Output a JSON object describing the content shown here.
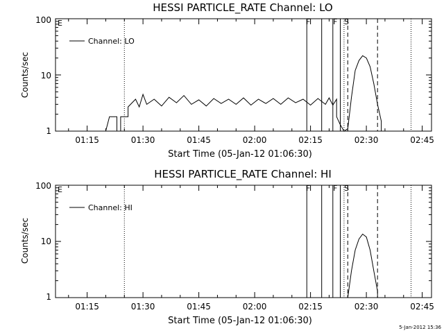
{
  "footer_timestamp": "5-Jan-2012 15:36",
  "chart_data": [
    {
      "type": "line",
      "title": "HESSI PARTICLE_RATE Channel: LO",
      "xlabel": "Start Time (05-Jan-12 01:06:30)",
      "ylabel": "Counts/sec",
      "yscale": "log",
      "ylim": [
        1,
        100
      ],
      "xlim": [
        "01:06:30",
        "02:47:30"
      ],
      "x_tick_labels": [
        "01:15",
        "01:30",
        "01:45",
        "02:00",
        "02:15",
        "02:30",
        "02:45"
      ],
      "y_tick_labels": [
        "1",
        "10",
        "100"
      ],
      "legend": "Channel: LO",
      "legend_position": "top-left",
      "flag_labels": [
        "E",
        "F",
        "F",
        "S"
      ],
      "flag_lines": {
        "solid": [
          "02:14",
          "02:18",
          "02:21",
          "02:23"
        ],
        "dashed": [
          "02:25",
          "02:33"
        ],
        "dotted": [
          "01:25",
          "02:24",
          "02:42"
        ]
      },
      "series": [
        {
          "points": [
            [
              "01:20",
              1.0
            ],
            [
              "01:21",
              1.8
            ],
            [
              "01:23",
              1.8
            ],
            [
              "01:23",
              1.0
            ],
            [
              "01:24",
              1.0
            ],
            [
              "01:24",
              1.8
            ],
            [
              "01:26",
              1.8
            ],
            [
              "01:26",
              2.7
            ],
            [
              "01:28",
              3.7
            ],
            [
              "01:29",
              2.7
            ],
            [
              "01:30",
              4.5
            ],
            [
              "01:31",
              3.0
            ],
            [
              "01:33",
              3.7
            ],
            [
              "01:35",
              2.8
            ],
            [
              "01:37",
              4.0
            ],
            [
              "01:39",
              3.2
            ],
            [
              "01:41",
              4.3
            ],
            [
              "01:43",
              3.0
            ],
            [
              "01:45",
              3.6
            ],
            [
              "01:47",
              2.8
            ],
            [
              "01:49",
              3.8
            ],
            [
              "01:51",
              3.1
            ],
            [
              "01:53",
              3.7
            ],
            [
              "01:55",
              3.0
            ],
            [
              "01:57",
              3.9
            ],
            [
              "01:59",
              2.9
            ],
            [
              "02:01",
              3.7
            ],
            [
              "02:03",
              3.1
            ],
            [
              "02:05",
              3.8
            ],
            [
              "02:07",
              3.0
            ],
            [
              "02:09",
              3.9
            ],
            [
              "02:11",
              3.2
            ],
            [
              "02:13",
              3.7
            ],
            [
              "02:15",
              2.9
            ],
            [
              "02:17",
              3.8
            ],
            [
              "02:19",
              3.0
            ],
            [
              "02:20",
              3.9
            ],
            [
              "02:21",
              2.9
            ],
            [
              "02:22",
              3.7
            ],
            [
              "02:22",
              1.8
            ],
            [
              "02:23",
              1.3
            ],
            [
              "02:24",
              1.0
            ],
            [
              "02:25",
              1.1
            ],
            [
              "02:26",
              4.0
            ],
            [
              "02:27",
              12.0
            ],
            [
              "02:28",
              18.0
            ],
            [
              "02:29",
              22.0
            ],
            [
              "02:30",
              20.0
            ],
            [
              "02:31",
              14.0
            ],
            [
              "02:32",
              7.0
            ],
            [
              "02:33",
              3.0
            ],
            [
              "02:34",
              1.5
            ],
            [
              "02:34",
              1.0
            ]
          ]
        }
      ]
    },
    {
      "type": "line",
      "title": "HESSI PARTICLE_RATE Channel: HI",
      "xlabel": "Start Time (05-Jan-12 01:06:30)",
      "ylabel": "Counts/sec",
      "yscale": "log",
      "ylim": [
        1,
        100
      ],
      "xlim": [
        "01:06:30",
        "02:47:30"
      ],
      "x_tick_labels": [
        "01:15",
        "01:30",
        "01:45",
        "02:00",
        "02:15",
        "02:30",
        "02:45"
      ],
      "y_tick_labels": [
        "1",
        "10",
        "100"
      ],
      "legend": "Channel: HI",
      "legend_position": "top-left",
      "flag_labels": [
        "E",
        "F",
        "F",
        "S"
      ],
      "flag_lines": {
        "solid": [
          "02:14",
          "02:18",
          "02:21",
          "02:23"
        ],
        "dashed": [
          "02:25",
          "02:33"
        ],
        "dotted": [
          "01:25",
          "02:24",
          "02:42"
        ]
      },
      "series": [
        {
          "points": [
            [
              "02:25",
              1.0
            ],
            [
              "02:26",
              3.0
            ],
            [
              "02:27",
              7.0
            ],
            [
              "02:28",
              11.0
            ],
            [
              "02:29",
              13.5
            ],
            [
              "02:30",
              12.0
            ],
            [
              "02:31",
              7.0
            ],
            [
              "02:32",
              3.0
            ],
            [
              "02:33",
              1.3
            ],
            [
              "02:33",
              1.0
            ]
          ]
        }
      ]
    }
  ]
}
